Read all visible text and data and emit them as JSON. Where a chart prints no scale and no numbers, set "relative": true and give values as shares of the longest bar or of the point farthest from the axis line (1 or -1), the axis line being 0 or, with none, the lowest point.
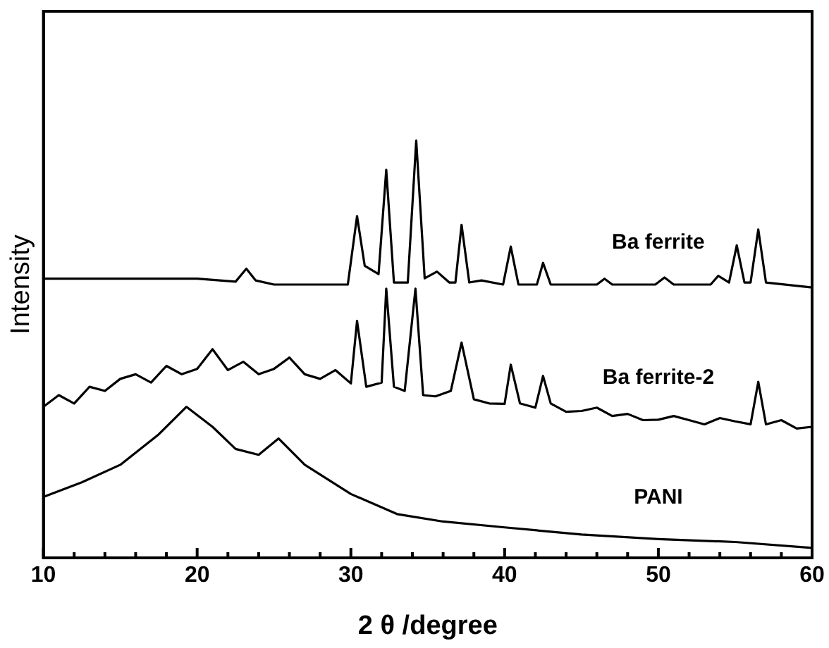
{
  "chart_data": {
    "type": "line",
    "xlabel": "2 θ /degree",
    "ylabel": "Intensity",
    "relative": true,
    "xlim": [
      10,
      60
    ],
    "xticks": [
      10,
      {
        "value": 12,
        "label": null
      },
      {
        "value": 14,
        "label": null
      },
      {
        "value": 16,
        "label": null
      },
      {
        "value": 18,
        "label": null
      },
      20,
      {
        "value": 22,
        "label": null
      },
      {
        "value": 24,
        "label": null
      },
      {
        "value": 26,
        "label": null
      },
      {
        "value": 28,
        "label": null
      },
      30,
      {
        "value": 32,
        "label": null
      },
      {
        "value": 34,
        "label": null
      },
      {
        "value": 36,
        "label": null
      },
      {
        "value": 38,
        "label": null
      },
      40,
      {
        "value": 42,
        "label": null
      },
      {
        "value": 44,
        "label": null
      },
      {
        "value": 46,
        "label": null
      },
      {
        "value": 48,
        "label": null
      },
      50,
      {
        "value": 52,
        "label": null
      },
      {
        "value": 54,
        "label": null
      },
      {
        "value": 56,
        "label": null
      },
      {
        "value": 58,
        "label": null
      },
      60
    ],
    "grid": false,
    "legend": false,
    "marker": "none",
    "line_style": "solid",
    "series": [
      {
        "name": "Ba ferrite",
        "color": "#000000",
        "x": [
          10,
          15,
          20,
          22.5,
          23.2,
          23.8,
          25,
          29.8,
          30.4,
          30.9,
          31.8,
          32.3,
          32.8,
          33.7,
          34.25,
          34.8,
          35.6,
          36.4,
          36.8,
          37.2,
          37.7,
          38.5,
          39.9,
          40.4,
          40.9,
          42.1,
          42.5,
          43,
          46,
          46.5,
          47,
          49.8,
          50.4,
          51,
          53.4,
          53.9,
          54.6,
          55.1,
          55.6,
          56,
          56.5,
          57,
          60
        ],
        "values": [
          0.669,
          0.669,
          0.669,
          0.662,
          0.693,
          0.665,
          0.655,
          0.655,
          0.819,
          0.7,
          0.68,
          0.93,
          0.66,
          0.66,
          1.0,
          0.67,
          0.686,
          0.66,
          0.66,
          0.798,
          0.66,
          0.665,
          0.655,
          0.746,
          0.655,
          0.655,
          0.707,
          0.655,
          0.655,
          0.669,
          0.655,
          0.655,
          0.672,
          0.655,
          0.655,
          0.676,
          0.66,
          0.749,
          0.66,
          0.66,
          0.787,
          0.66,
          0.648
        ]
      },
      {
        "name": "Ba ferrite-2",
        "color": "#000000",
        "x": [
          10,
          11,
          12,
          13,
          14,
          15,
          16,
          17,
          18,
          19,
          20,
          21,
          22,
          23,
          24,
          25,
          26,
          27,
          28,
          29,
          30,
          30.4,
          31,
          32,
          32.3,
          32.8,
          33.5,
          34.2,
          34.7,
          35.5,
          36.5,
          37.2,
          38,
          39,
          40,
          40.4,
          41,
          42,
          42.5,
          43,
          44,
          45,
          46,
          47,
          48,
          49,
          50,
          51,
          52,
          53,
          54,
          55,
          56,
          56.5,
          57,
          58,
          59,
          60
        ],
        "values": [
          0.362,
          0.39,
          0.37,
          0.41,
          0.4,
          0.429,
          0.44,
          0.42,
          0.46,
          0.44,
          0.453,
          0.5,
          0.45,
          0.47,
          0.44,
          0.453,
          0.48,
          0.44,
          0.429,
          0.45,
          0.418,
          0.568,
          0.41,
          0.42,
          0.645,
          0.41,
          0.4,
          0.645,
          0.39,
          0.387,
          0.4,
          0.516,
          0.38,
          0.37,
          0.369,
          0.463,
          0.37,
          0.36,
          0.436,
          0.37,
          0.35,
          0.352,
          0.36,
          0.34,
          0.345,
          0.33,
          0.331,
          0.34,
          0.33,
          0.32,
          0.335,
          0.327,
          0.32,
          0.422,
          0.32,
          0.33,
          0.31,
          0.314
        ]
      },
      {
        "name": "PANI",
        "color": "#000000",
        "x": [
          10,
          12.5,
          15,
          17.5,
          19.3,
          21,
          22.5,
          24,
          25.3,
          27,
          30,
          33,
          36,
          40,
          45,
          50,
          55,
          60
        ],
        "values": [
          0.146,
          0.181,
          0.223,
          0.296,
          0.362,
          0.314,
          0.261,
          0.247,
          0.286,
          0.223,
          0.153,
          0.105,
          0.087,
          0.073,
          0.056,
          0.045,
          0.038,
          0.024
        ]
      }
    ]
  }
}
